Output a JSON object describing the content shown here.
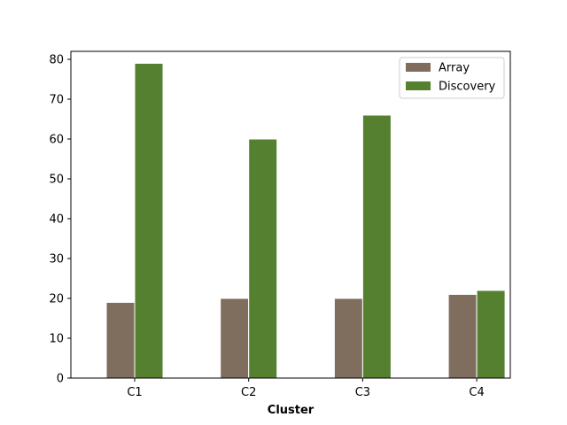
{
  "chart_data": {
    "type": "bar",
    "title": "",
    "xlabel": "Cluster",
    "ylabel": "",
    "categories": [
      "C1",
      "C2",
      "C3",
      "C4"
    ],
    "series": [
      {
        "name": "Array",
        "values": [
          19,
          20,
          20,
          21
        ],
        "color": "#7f6e5d"
      },
      {
        "name": "Discovery",
        "values": [
          79,
          60,
          66,
          22
        ],
        "color": "#548030"
      }
    ],
    "ylim": [
      0,
      82
    ],
    "yticks": [
      0,
      10,
      20,
      30,
      40,
      50,
      60,
      70,
      80
    ],
    "grid": false,
    "legend_position": "top-right"
  }
}
